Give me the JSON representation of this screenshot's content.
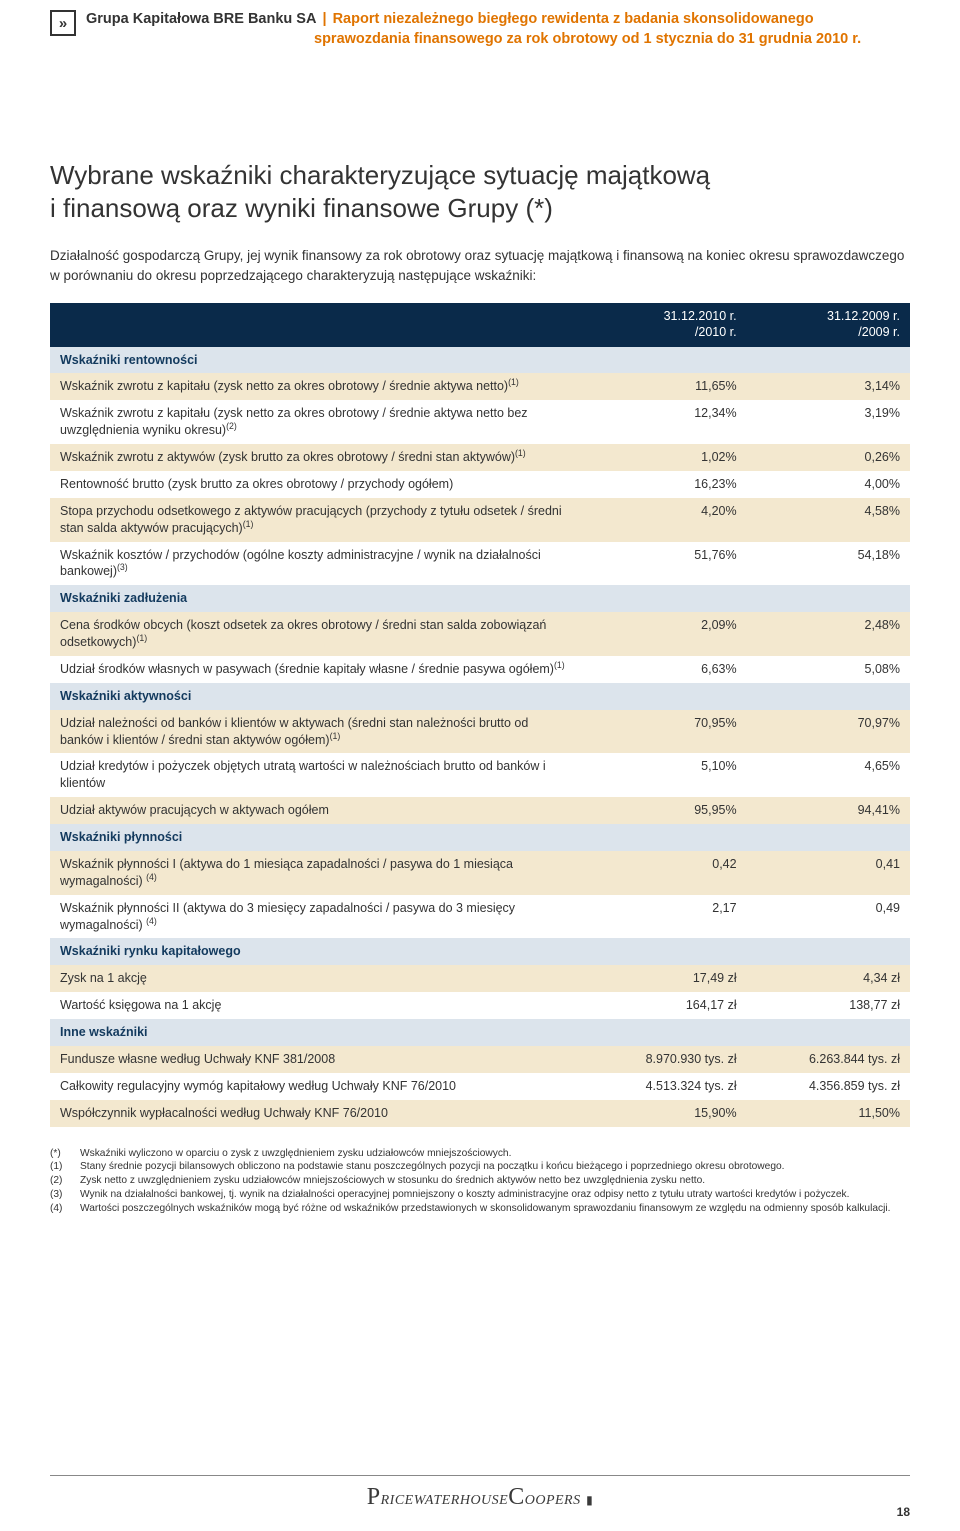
{
  "header": {
    "company": "Grupa Kapitałowa BRE Banku SA",
    "separator": "|",
    "report_line1": "Raport niezależnego biegłego rewidenta z badania skonsolidowanego",
    "report_line2": "sprawozdania finansowego za rok obrotowy od 1 stycznia do 31 grudnia 2010 r."
  },
  "title_line1": "Wybrane wskaźniki charakteryzujące sytuację majątkową",
  "title_line2": "i finansową oraz wyniki finansowe Grupy (*)",
  "intro": "Działalność gospodarczą Grupy, jej wynik finansowy za rok obrotowy oraz sytuację majątkową i finansową na koniec okresu sprawozdawczego w porównaniu do okresu poprzedzającego charakteryzują następujące wskaźniki:",
  "table": {
    "col1_a": "31.12.2010 r.",
    "col1_b": "/2010 r.",
    "col2_a": "31.12.2009 r.",
    "col2_b": "/2009 r.",
    "rows": [
      {
        "type": "section",
        "label": "Wskaźniki rentowności"
      },
      {
        "type": "data",
        "stripe": "odd",
        "label": "Wskaźnik zwrotu z kapitału (zysk netto za okres obrotowy / średnie aktywa netto)",
        "sup": "(1)",
        "v1": "11,65%",
        "v2": "3,14%"
      },
      {
        "type": "data",
        "stripe": "even",
        "label": "Wskaźnik zwrotu z kapitału (zysk netto za okres obrotowy / średnie aktywa netto bez uwzględnienia wyniku okresu)",
        "sup": "(2)",
        "v1": "12,34%",
        "v2": "3,19%"
      },
      {
        "type": "data",
        "stripe": "odd",
        "label": "Wskaźnik zwrotu z aktywów (zysk brutto za okres obrotowy / średni stan aktywów)",
        "sup": "(1)",
        "v1": "1,02%",
        "v2": "0,26%"
      },
      {
        "type": "data",
        "stripe": "even",
        "label": "Rentowność brutto (zysk brutto za okres obrotowy / przychody ogółem)",
        "v1": "16,23%",
        "v2": "4,00%"
      },
      {
        "type": "data",
        "stripe": "odd",
        "label": "Stopa przychodu odsetkowego z aktywów pracujących (przychody z tytułu odsetek / średni stan salda aktywów pracujących)",
        "sup": "(1)",
        "v1": "4,20%",
        "v2": "4,58%"
      },
      {
        "type": "data",
        "stripe": "even",
        "label": "Wskaźnik kosztów / przychodów (ogólne koszty administracyjne / wynik na działalności bankowej)",
        "sup": "(3)",
        "v1": "51,76%",
        "v2": "54,18%"
      },
      {
        "type": "section",
        "label": "Wskaźniki zadłużenia"
      },
      {
        "type": "data",
        "stripe": "odd",
        "label": "Cena środków obcych (koszt odsetek za okres obrotowy / średni stan salda zobowiązań odsetkowych)",
        "sup": "(1)",
        "v1": "2,09%",
        "v2": "2,48%"
      },
      {
        "type": "data",
        "stripe": "even",
        "label": "Udział środków własnych w pasywach (średnie kapitały własne / średnie pasywa ogółem)",
        "sup": "(1)",
        "v1": "6,63%",
        "v2": "5,08%"
      },
      {
        "type": "section",
        "label": "Wskaźniki aktywności"
      },
      {
        "type": "data",
        "stripe": "odd",
        "label": "Udział należności od banków i klientów w aktywach (średni stan należności brutto od banków i klientów / średni stan aktywów ogółem)",
        "sup": "(1)",
        "v1": "70,95%",
        "v2": "70,97%"
      },
      {
        "type": "data",
        "stripe": "even",
        "label": "Udział kredytów i pożyczek objętych utratą wartości w należnościach brutto od banków i klientów",
        "v1": "5,10%",
        "v2": "4,65%"
      },
      {
        "type": "data",
        "stripe": "odd",
        "label": "Udział aktywów pracujących w aktywach ogółem",
        "v1": "95,95%",
        "v2": "94,41%"
      },
      {
        "type": "section",
        "label": "Wskaźniki płynności"
      },
      {
        "type": "data",
        "stripe": "odd",
        "label": "Wskaźnik płynności I (aktywa do 1 miesiąca zapadalności / pasywa do 1 miesiąca wymagalności) ",
        "sup": "(4)",
        "v1": "0,42",
        "v2": "0,41"
      },
      {
        "type": "data",
        "stripe": "even",
        "label": "Wskaźnik płynności II (aktywa do 3 miesięcy zapadalności / pasywa do 3 miesięcy wymagalności) ",
        "sup": "(4)",
        "v1": "2,17",
        "v2": "0,49"
      },
      {
        "type": "section",
        "label": "Wskaźniki rynku kapitałowego"
      },
      {
        "type": "data",
        "stripe": "odd",
        "label": "Zysk na 1 akcję",
        "v1": "17,49 zł",
        "v2": "4,34 zł"
      },
      {
        "type": "data",
        "stripe": "even",
        "label": "Wartość księgowa na 1 akcję",
        "v1": "164,17 zł",
        "v2": "138,77 zł"
      },
      {
        "type": "section",
        "label": "Inne wskaźniki"
      },
      {
        "type": "data",
        "stripe": "odd",
        "label": "Fundusze własne według Uchwały KNF 381/2008",
        "v1": "8.970.930 tys. zł",
        "v2": "6.263.844 tys. zł"
      },
      {
        "type": "data",
        "stripe": "even",
        "label": "Całkowity regulacyjny wymóg kapitałowy według Uchwały KNF 76/2010",
        "v1": "4.513.324 tys. zł",
        "v2": "4.356.859 tys. zł"
      },
      {
        "type": "data",
        "stripe": "odd",
        "label": "Współczynnik wypłacalności według Uchwały KNF 76/2010",
        "v1": "15,90%",
        "v2": "11,50%"
      }
    ]
  },
  "footnotes": [
    {
      "mark": "(*)",
      "text": "Wskaźniki wyliczono w oparciu o zysk z uwzględnieniem zysku udziałowców mniejszościowych."
    },
    {
      "mark": "(1)",
      "text": "Stany średnie pozycji bilansowych obliczono na podstawie stanu poszczególnych pozycji na początku i końcu bieżącego i poprzedniego okresu obrotowego."
    },
    {
      "mark": "(2)",
      "text": "Zysk netto z uwzględnieniem zysku udziałowców mniejszościowych w stosunku do średnich aktywów netto bez uwzględnienia zysku netto."
    },
    {
      "mark": "(3)",
      "text": "Wynik na działalności bankowej, tj. wynik na działalności operacyjnej pomniejszony o koszty administracyjne oraz odpisy netto z tytułu utraty wartości kredytów i pożyczek."
    },
    {
      "mark": "(4)",
      "text": "Wartości poszczególnych wskaźników mogą być różne od wskaźników przedstawionych w skonsolidowanym sprawozdaniu finansowym ze względu na odmienny sposób kalkulacji."
    }
  ],
  "footer": {
    "brand": "PricewaterhouseCoopers",
    "page": "18"
  }
}
